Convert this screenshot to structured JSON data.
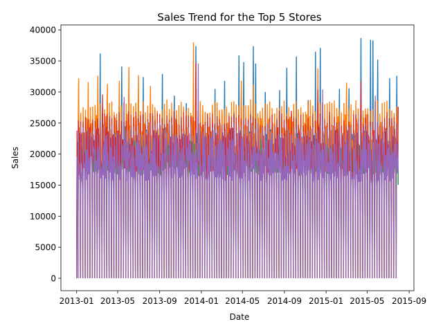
{
  "chart_data": {
    "type": "line",
    "title": "Sales Trend for the Top 5 Stores",
    "xlabel": "Date",
    "ylabel": "Sales",
    "xlim": [
      "2012-11-16",
      "2015-09-15"
    ],
    "ylim": [
      -2000,
      40800
    ],
    "x_ticks": [
      "2013-01",
      "2013-05",
      "2013-09",
      "2014-01",
      "2014-05",
      "2014-09",
      "2015-01",
      "2015-05",
      "2015-09"
    ],
    "y_ticks": [
      0,
      5000,
      10000,
      15000,
      20000,
      25000,
      30000,
      35000,
      40000
    ],
    "grid": false,
    "legend": "none",
    "date_range": [
      "2013-01-01",
      "2015-07-31"
    ],
    "series": [
      {
        "color": "#1f77b4",
        "values": [
          {
            "x": "2013-03-11",
            "y": 36200
          },
          {
            "x": "2013-04-08",
            "y": 26000
          },
          {
            "x": "2013-05-13",
            "y": 34100
          },
          {
            "x": "2013-06-10",
            "y": 24000
          },
          {
            "x": "2013-07-15",
            "y": 32400
          },
          {
            "x": "2013-08-12",
            "y": 26200
          },
          {
            "x": "2013-09-09",
            "y": 32900
          },
          {
            "x": "2013-10-14",
            "y": 29400
          },
          {
            "x": "2013-11-18",
            "y": 28200
          },
          {
            "x": "2013-12-16",
            "y": 37400
          },
          {
            "x": "2014-02-10",
            "y": 30500
          },
          {
            "x": "2014-03-10",
            "y": 31800
          },
          {
            "x": "2014-04-07",
            "y": 26800
          },
          {
            "x": "2014-04-21",
            "y": 35900
          },
          {
            "x": "2014-05-05",
            "y": 34800
          },
          {
            "x": "2014-06-02",
            "y": 37400
          },
          {
            "x": "2014-06-09",
            "y": 34600
          },
          {
            "x": "2014-07-07",
            "y": 30000
          },
          {
            "x": "2014-08-18",
            "y": 30300
          },
          {
            "x": "2014-09-08",
            "y": 33900
          },
          {
            "x": "2014-10-06",
            "y": 35700
          },
          {
            "x": "2014-11-10",
            "y": 28700
          },
          {
            "x": "2014-12-01",
            "y": 36500
          },
          {
            "x": "2014-12-15",
            "y": 37100
          },
          {
            "x": "2015-02-09",
            "y": 30500
          },
          {
            "x": "2015-03-09",
            "y": 30600
          },
          {
            "x": "2015-04-13",
            "y": 38700
          },
          {
            "x": "2015-05-11",
            "y": 38400
          },
          {
            "x": "2015-05-18",
            "y": 38300
          },
          {
            "x": "2015-06-01",
            "y": 35200
          },
          {
            "x": "2015-07-06",
            "y": 32200
          },
          {
            "x": "2015-07-27",
            "y": 32600
          }
        ]
      },
      {
        "color": "#ff7f0e",
        "values": [
          {
            "x": "2013-01-07",
            "y": 32200
          },
          {
            "x": "2013-02-04",
            "y": 31600
          },
          {
            "x": "2013-03-04",
            "y": 32600
          },
          {
            "x": "2013-04-01",
            "y": 31300
          },
          {
            "x": "2013-05-06",
            "y": 31800
          },
          {
            "x": "2013-06-03",
            "y": 34000
          },
          {
            "x": "2013-07-01",
            "y": 32700
          },
          {
            "x": "2013-08-05",
            "y": 31000
          },
          {
            "x": "2013-12-09",
            "y": 38000
          },
          {
            "x": "2014-04-28",
            "y": 31800
          },
          {
            "x": "2014-06-02",
            "y": 31200
          },
          {
            "x": "2014-12-08",
            "y": 33800
          },
          {
            "x": "2015-03-02",
            "y": 31500
          },
          {
            "x": "2015-07-31",
            "y": 27600
          }
        ]
      },
      {
        "color": "#2ca02c",
        "values": [
          {
            "x": "2013-01-21",
            "y": 21800
          },
          {
            "x": "2013-06-17",
            "y": 20500
          },
          {
            "x": "2014-07-14",
            "y": 19000
          },
          {
            "x": "2015-07-27",
            "y": 17200
          }
        ]
      },
      {
        "color": "#d62728",
        "values": [
          {
            "x": "2013-01-07",
            "y": 24200
          },
          {
            "x": "2013-03-18",
            "y": 29600
          },
          {
            "x": "2013-12-16",
            "y": 34700
          },
          {
            "x": "2014-12-08",
            "y": 30400
          },
          {
            "x": "2015-04-13",
            "y": 31700
          },
          {
            "x": "2015-07-31",
            "y": 27600
          }
        ]
      },
      {
        "color": "#9467bd",
        "values": [
          {
            "x": "2013-05-20",
            "y": 29200
          },
          {
            "x": "2013-12-23",
            "y": 34600
          },
          {
            "x": "2014-12-22",
            "y": 30400
          },
          {
            "x": "2015-05-25",
            "y": 29400
          },
          {
            "x": "2015-07-31",
            "y": 21700
          }
        ]
      }
    ]
  }
}
